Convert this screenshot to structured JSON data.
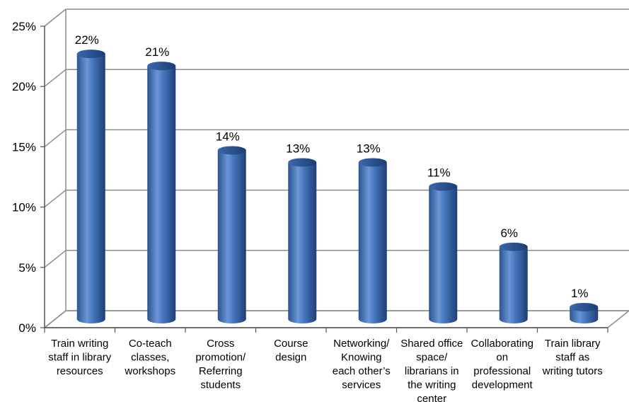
{
  "chart_data": {
    "type": "bar",
    "title": "",
    "xlabel": "",
    "ylabel": "",
    "ylim": [
      0,
      25
    ],
    "yticks": [
      "0%",
      "5%",
      "10%",
      "15%",
      "20%",
      "25%"
    ],
    "grid": true,
    "legend": "none",
    "categories": [
      [
        "Train writing",
        "staff in library",
        "resources"
      ],
      [
        "Co-teach",
        "classes,",
        "workshops"
      ],
      [
        "Cross",
        "promotion/",
        "Referring",
        "students"
      ],
      [
        "Course",
        "design"
      ],
      [
        "Networking/",
        "Knowing",
        "each other’s",
        "services"
      ],
      [
        "Shared office",
        "space/",
        "librarians in",
        "the writing",
        "center"
      ],
      [
        "Collaborating",
        "on",
        "professional",
        "development"
      ],
      [
        "Train library",
        "staff as",
        "writing tutors"
      ]
    ],
    "values": [
      22,
      21,
      14,
      13,
      13,
      11,
      6,
      1
    ],
    "data_labels": [
      "22%",
      "21%",
      "14%",
      "13%",
      "13%",
      "11%",
      "6%",
      "1%"
    ],
    "colors": {
      "bar": "#3f6fb8",
      "bar_dark": "#22457f",
      "bar_light": "#7fa6e0",
      "grid": "#8c8c8c",
      "axis": "#555555"
    }
  }
}
